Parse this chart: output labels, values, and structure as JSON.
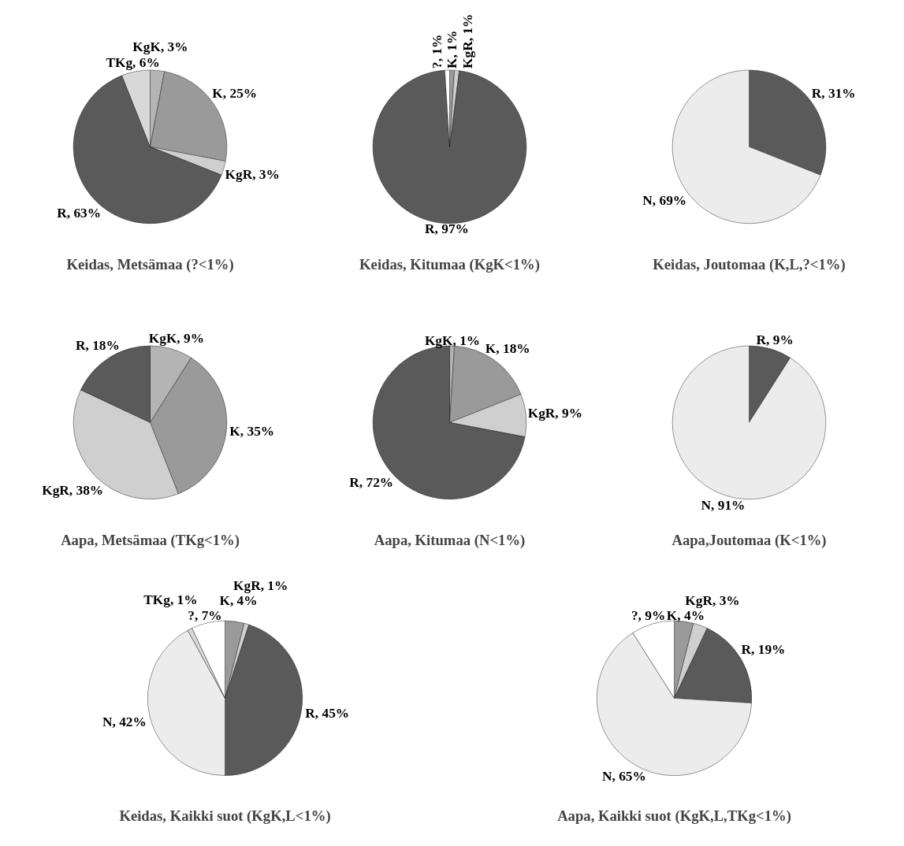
{
  "chart_data": [
    {
      "type": "pie",
      "title": "Keidas, Metsämaa (?<1%)",
      "categories": [
        "KgK",
        "K",
        "KgR",
        "R",
        "TKg"
      ],
      "values": [
        3,
        25,
        3,
        63,
        6
      ],
      "colors": [
        "#b4b4b4",
        "#9a9a9a",
        "#cfcfcf",
        "#5a5a5a",
        "#d8d8d8"
      ],
      "value_labels": [
        "3%",
        "25%",
        "3%",
        "63%",
        "6%"
      ]
    },
    {
      "type": "pie",
      "title": "Keidas, Kitumaa (KgK<1%)",
      "categories": [
        "K",
        "KgR",
        "R",
        "?"
      ],
      "values": [
        1,
        1,
        97,
        1
      ],
      "colors": [
        "#9a9a9a",
        "#cfcfcf",
        "#5a5a5a",
        "#ffffff"
      ],
      "value_labels": [
        "1%",
        "1%",
        "97%",
        "1%"
      ]
    },
    {
      "type": "pie",
      "title": "Keidas, Joutomaa (K,L,?<1%)",
      "categories": [
        "R",
        "N"
      ],
      "values": [
        31,
        69
      ],
      "colors": [
        "#5a5a5a",
        "#ececec"
      ],
      "value_labels": [
        "31%",
        "69%"
      ]
    },
    {
      "type": "pie",
      "title": "Aapa, Metsämaa (TKg<1%)",
      "categories": [
        "KgK",
        "K",
        "KgR",
        "R"
      ],
      "values": [
        9,
        35,
        38,
        18
      ],
      "colors": [
        "#b4b4b4",
        "#9a9a9a",
        "#cfcfcf",
        "#5a5a5a"
      ],
      "value_labels": [
        "9%",
        "35%",
        "38%",
        "18%"
      ]
    },
    {
      "type": "pie",
      "title": "Aapa, Kitumaa (N<1%)",
      "categories": [
        "KgK",
        "K",
        "KgR",
        "R"
      ],
      "values": [
        1,
        18,
        9,
        72
      ],
      "colors": [
        "#b4b4b4",
        "#9a9a9a",
        "#cfcfcf",
        "#5a5a5a"
      ],
      "value_labels": [
        "1%",
        "18%",
        "9%",
        "72%"
      ]
    },
    {
      "type": "pie",
      "title": "Aapa,Joutomaa (K<1%)",
      "categories": [
        "R",
        "N"
      ],
      "values": [
        9,
        91
      ],
      "colors": [
        "#5a5a5a",
        "#ececec"
      ],
      "value_labels": [
        "9%",
        "91%"
      ]
    },
    {
      "type": "pie",
      "title": "Keidas, Kaikki suot (KgK,L<1%)",
      "categories": [
        "K",
        "KgR",
        "R",
        "N",
        "TKg",
        "?"
      ],
      "values": [
        4,
        1,
        45,
        42,
        1,
        7
      ],
      "colors": [
        "#9a9a9a",
        "#cfcfcf",
        "#5a5a5a",
        "#ececec",
        "#d8d8d8",
        "#ffffff"
      ],
      "value_labels": [
        "4%",
        "1%",
        "45%",
        "42%",
        "1%",
        "7%"
      ]
    },
    {
      "type": "pie",
      "title": "Aapa, Kaikki suot (KgK,L,TKg<1%)",
      "categories": [
        "K",
        "KgR",
        "R",
        "N",
        "?"
      ],
      "values": [
        4,
        3,
        19,
        65,
        9
      ],
      "colors": [
        "#9a9a9a",
        "#cfcfcf",
        "#5a5a5a",
        "#ececec",
        "#ffffff"
      ],
      "value_labels": [
        "4%",
        "3%",
        "19%",
        "65%",
        "9%"
      ]
    }
  ]
}
